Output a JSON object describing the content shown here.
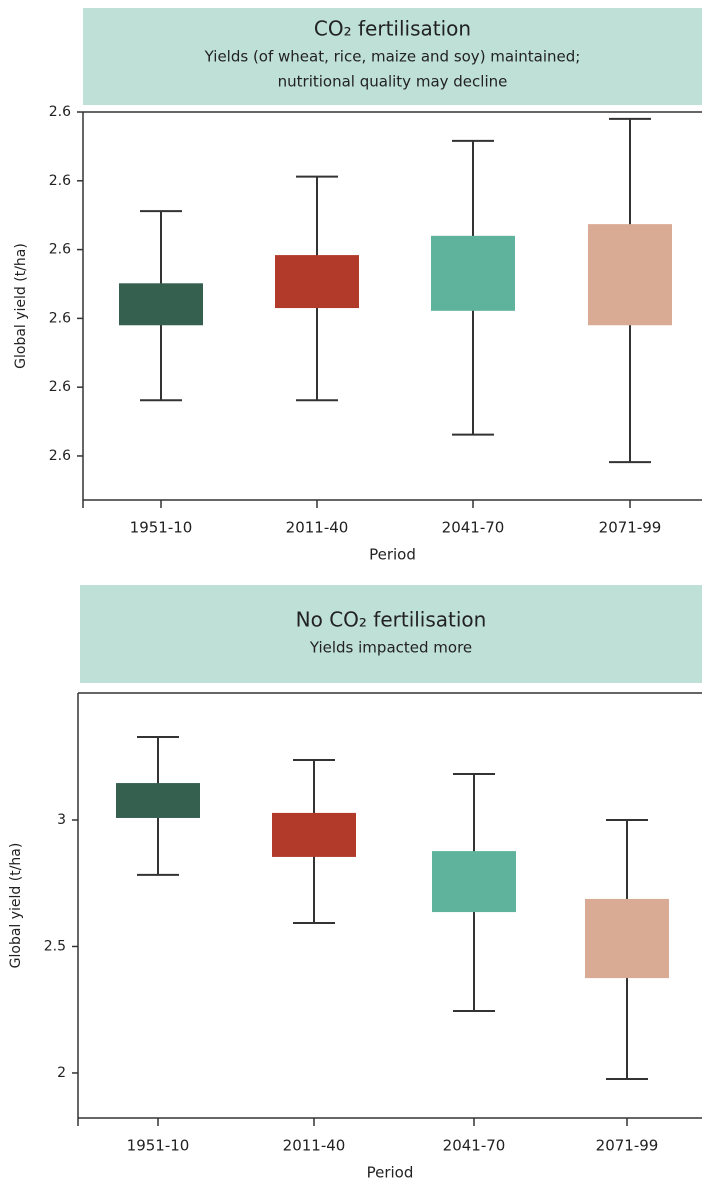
{
  "chart_data": [
    {
      "type": "box",
      "title": "CO₂ fertilisation",
      "subtitle": [
        "Yields (of wheat, rice, maize and soy) maintained;",
        "nutritional quality may decline"
      ],
      "ylabel": "Global yield (t/ha)",
      "xlabel": "Period",
      "categories": [
        "1951-10",
        "2011-40",
        "2041-70",
        "2071-99"
      ],
      "colors": [
        "#35604f",
        "#b23a2a",
        "#5fb39c",
        "#d9ab95"
      ],
      "boxes": [
        {
          "min": 2.5881,
          "q1": 2.599,
          "q3": 2.6051,
          "max": 2.6156
        },
        {
          "min": 2.5881,
          "q1": 2.6015,
          "q3": 2.6092,
          "max": 2.6206
        },
        {
          "min": 2.5831,
          "q1": 2.6011,
          "q3": 2.612,
          "max": 2.6258
        },
        {
          "min": 2.5791,
          "q1": 2.599,
          "q3": 2.6137,
          "max": 2.629
        }
      ],
      "ylim": [
        2.5736,
        2.63
      ],
      "yticks": [
        {
          "value": 2.58,
          "label": "2.6"
        },
        {
          "value": 2.59,
          "label": "2.6"
        },
        {
          "value": 2.6,
          "label": "2.6"
        },
        {
          "value": 2.61,
          "label": "2.6"
        },
        {
          "value": 2.62,
          "label": "2.6"
        },
        {
          "value": 2.63,
          "label": "2.6"
        }
      ]
    },
    {
      "type": "box",
      "title": "No CO₂ fertilisation",
      "subtitle": [
        "Yields impacted more"
      ],
      "ylabel": "Global yield (t/ha)",
      "xlabel": "Period",
      "categories": [
        "1951-10",
        "2011-40",
        "2041-70",
        "2071-99"
      ],
      "colors": [
        "#35604f",
        "#b23a2a",
        "#5fb39c",
        "#d9ab95"
      ],
      "boxes": [
        {
          "min": 2.783,
          "q1": 3.008,
          "q3": 3.146,
          "max": 3.328
        },
        {
          "min": 2.593,
          "q1": 2.854,
          "q3": 3.028,
          "max": 3.237
        },
        {
          "min": 2.245,
          "q1": 2.636,
          "q3": 2.877,
          "max": 3.182
        },
        {
          "min": 1.976,
          "q1": 2.375,
          "q3": 2.688,
          "max": 3.0
        }
      ],
      "ylim": [
        1.822,
        3.502
      ],
      "yticks": [
        2,
        2.5,
        3
      ]
    }
  ]
}
